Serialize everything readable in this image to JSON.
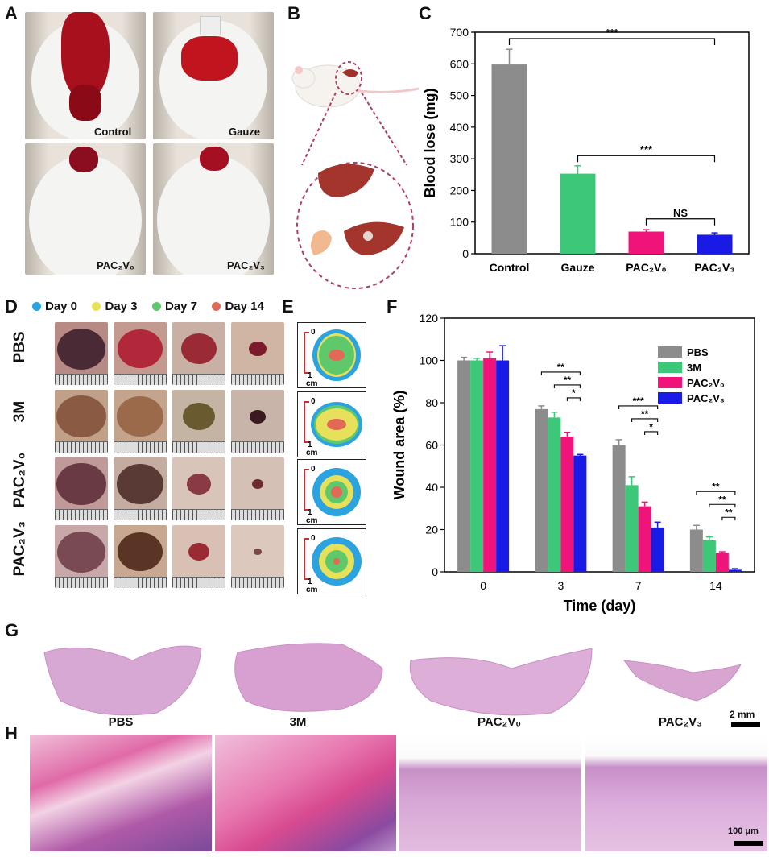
{
  "panels": {
    "A": "A",
    "B": "B",
    "C": "C",
    "D": "D",
    "E": "E",
    "F": "F",
    "G": "G",
    "H": "H"
  },
  "panel_a": {
    "labels": [
      "Control",
      "Gauze",
      "PAC₂V₀",
      "PAC₂V₃"
    ]
  },
  "panel_d": {
    "legend": [
      {
        "label": "Day 0",
        "color": "#2aa3e0"
      },
      {
        "label": "Day 3",
        "color": "#e6e05a"
      },
      {
        "label": "Day 7",
        "color": "#5ec86a"
      },
      {
        "label": "Day 14",
        "color": "#e06a55"
      }
    ],
    "rows": [
      "PBS",
      "3M",
      "PAC₂V₀",
      "PAC₂V₃"
    ]
  },
  "panel_e": {
    "scale_top": "0",
    "scale_bottom": "1",
    "unit": "cm"
  },
  "panel_h": {
    "titles": [
      "PBS",
      "3M",
      "PAC₂V₀",
      "PAC₂V₃"
    ],
    "scale_g": "2 mm",
    "scale_h": "100 μm"
  },
  "chart_data": [
    {
      "type": "bar",
      "title": "",
      "xlabel": "",
      "ylabel": "Blood lose (mg)",
      "ylim": [
        0,
        700
      ],
      "yticks": [
        0,
        100,
        200,
        300,
        400,
        500,
        600,
        700
      ],
      "categories": [
        "Control",
        "Gauze",
        "PAC₂V₀",
        "PAC₂V₃"
      ],
      "values": [
        598,
        253,
        70,
        60
      ],
      "errors": [
        48,
        25,
        6,
        6
      ],
      "colors": [
        "#8c8c8c",
        "#3cc878",
        "#f0147a",
        "#1a1ae6"
      ],
      "annotations": [
        {
          "from": "Control",
          "to": "PAC₂V₃",
          "label": "***"
        },
        {
          "from": "Gauze",
          "to": "PAC₂V₃",
          "label": "***"
        },
        {
          "from": "PAC₂V₀",
          "to": "PAC₂V₃",
          "label": "NS"
        }
      ]
    },
    {
      "type": "bar",
      "title": "",
      "xlabel": "Time (day)",
      "ylabel": "Wound area (%)",
      "ylim": [
        0,
        120
      ],
      "yticks": [
        0,
        20,
        40,
        60,
        80,
        100,
        120
      ],
      "categories": [
        "0",
        "3",
        "7",
        "14"
      ],
      "legend": "top-right",
      "series": [
        {
          "name": "PBS",
          "color": "#8c8c8c",
          "values": [
            100,
            77,
            60,
            20
          ],
          "errors": [
            1.5,
            1.5,
            2.5,
            2
          ]
        },
        {
          "name": "3M",
          "color": "#3cc878",
          "values": [
            100,
            73,
            41,
            15
          ],
          "errors": [
            1,
            2.5,
            4,
            1.5
          ]
        },
        {
          "name": "PAC₂V₀",
          "color": "#f0147a",
          "values": [
            101,
            64,
            31,
            9
          ],
          "errors": [
            3,
            2,
            2,
            0.5
          ]
        },
        {
          "name": "PAC₂V₃",
          "color": "#1a1ae6",
          "values": [
            100,
            55,
            21,
            1
          ],
          "errors": [
            7,
            0.5,
            2.5,
            0.5
          ]
        }
      ],
      "annotations": [
        {
          "group": "3",
          "labels": [
            "**",
            "**",
            "*"
          ]
        },
        {
          "group": "7",
          "labels": [
            "***",
            "**",
            "*"
          ]
        },
        {
          "group": "14",
          "labels": [
            "**",
            "**",
            "**"
          ]
        }
      ]
    }
  ]
}
